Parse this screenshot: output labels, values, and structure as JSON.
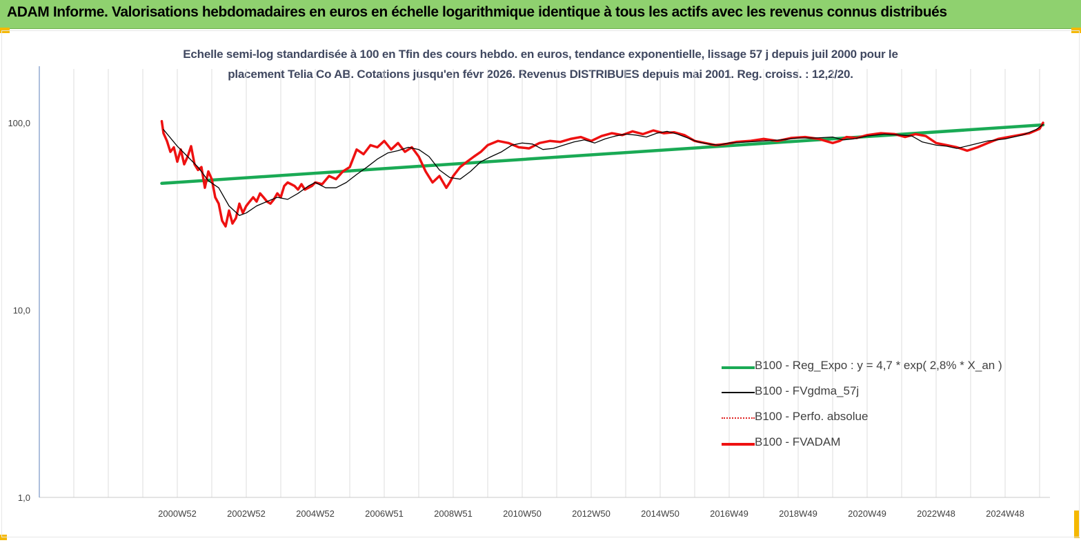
{
  "header": {
    "title": "ADAM Informe. Valorisations hebdomadaires en euros en échelle logarithmique identique à tous les actifs avec les revenus connus distribués"
  },
  "chart_data": {
    "type": "line",
    "subtitle_line1": "Echelle semi-log standardisée à 100 en Tfin des cours hebdo. en euros, tendance exponentielle, lissage 57 j depuis juil 2000 pour le",
    "subtitle_line2": "placement Telia Co AB. Cotations jusqu'en févr 2026. Revenus DISTRIBUES depuis mai 2001. Reg. croiss. : 12,2/20.",
    "y_scale": "log",
    "ylim": [
      1,
      180
    ],
    "y_tick_labels": [
      {
        "value": 1,
        "label": "1,0"
      },
      {
        "value": 10,
        "label": "10,0"
      },
      {
        "value": 100,
        "label": "100,0"
      }
    ],
    "x_tick_labels": [
      "2000W52",
      "2002W52",
      "2004W52",
      "2006W51",
      "2008W51",
      "2010W50",
      "2012W50",
      "2014W50",
      "2016W49",
      "2018W49",
      "2020W49",
      "2022W48",
      "2024W48"
    ],
    "x_tick_years": [
      2001.0,
      2003.0,
      2005.0,
      2007.0,
      2009.0,
      2011.0,
      2013.0,
      2015.0,
      2017.0,
      2019.0,
      2021.0,
      2023.0,
      2025.0
    ],
    "xlim": [
      1996.0,
      2026.3
    ],
    "grid": "vertical",
    "legend_position": "bottom-right",
    "series": [
      {
        "name": "B100 - Reg_Expo : y = 4,7 * exp( 2,8% *  X_an )",
        "color": "#1aaa55",
        "style": "solid-thick",
        "x": [
          2000.55,
          2026.1
        ],
        "y": [
          47.5,
          97.5
        ]
      },
      {
        "name": "B100 - FVgdma_57j",
        "color": "#000000",
        "style": "solid-thin",
        "x": [
          2000.6,
          2001.0,
          2001.3,
          2001.6,
          2001.9,
          2002.2,
          2002.5,
          2002.8,
          2003.0,
          2003.3,
          2003.6,
          2003.9,
          2004.2,
          2004.5,
          2004.8,
          2005.0,
          2005.3,
          2005.6,
          2005.9,
          2006.2,
          2006.5,
          2006.8,
          2007.1,
          2007.4,
          2007.7,
          2008.0,
          2008.3,
          2008.6,
          2008.9,
          2009.2,
          2009.5,
          2009.8,
          2010.1,
          2010.4,
          2010.7,
          2011.0,
          2011.3,
          2011.6,
          2011.9,
          2012.2,
          2012.5,
          2012.8,
          2013.1,
          2013.4,
          2013.7,
          2014.0,
          2014.3,
          2014.6,
          2014.9,
          2015.2,
          2015.5,
          2015.8,
          2016.1,
          2016.4,
          2016.7,
          2017.0,
          2017.5,
          2018.0,
          2018.5,
          2019.0,
          2019.5,
          2020.0,
          2020.3,
          2020.6,
          2021.0,
          2021.5,
          2022.0,
          2022.3,
          2022.6,
          2023.0,
          2023.3,
          2023.6,
          2024.0,
          2024.5,
          2025.0,
          2025.5,
          2025.9,
          2026.1
        ],
        "y": [
          92,
          75,
          66,
          58,
          49,
          45,
          36,
          32,
          33,
          36,
          38,
          40,
          39,
          42,
          46,
          48,
          45,
          45,
          48,
          53,
          58,
          64,
          69,
          71,
          74,
          72,
          66,
          56,
          51,
          50,
          55,
          62,
          66,
          70,
          76,
          78,
          77,
          72,
          73,
          76,
          79,
          81,
          78,
          82,
          85,
          87,
          86,
          84,
          88,
          90,
          87,
          83,
          79,
          77,
          76,
          78,
          79,
          80,
          81,
          83,
          83,
          84,
          81,
          82,
          85,
          87,
          86,
          85,
          79,
          76,
          75,
          73,
          76,
          80,
          82,
          86,
          92,
          98
        ]
      },
      {
        "name": "B100 - Perfo. absolue",
        "color": "#e02020",
        "style": "dotted"
      },
      {
        "name": "B100 - FVADAM",
        "color": "#ee1111",
        "style": "solid-thick",
        "x": [
          2000.55,
          2000.6,
          2000.7,
          2000.8,
          2000.9,
          2001.0,
          2001.1,
          2001.2,
          2001.3,
          2001.4,
          2001.5,
          2001.6,
          2001.7,
          2001.8,
          2001.9,
          2002.0,
          2002.1,
          2002.2,
          2002.3,
          2002.4,
          2002.5,
          2002.6,
          2002.7,
          2002.8,
          2002.9,
          2003.0,
          2003.1,
          2003.2,
          2003.3,
          2003.4,
          2003.5,
          2003.6,
          2003.7,
          2003.8,
          2003.9,
          2004.0,
          2004.1,
          2004.2,
          2004.3,
          2004.4,
          2004.5,
          2004.6,
          2004.7,
          2004.8,
          2004.9,
          2005.0,
          2005.2,
          2005.4,
          2005.6,
          2005.8,
          2006.0,
          2006.2,
          2006.4,
          2006.6,
          2006.8,
          2007.0,
          2007.2,
          2007.4,
          2007.6,
          2007.8,
          2008.0,
          2008.2,
          2008.4,
          2008.6,
          2008.8,
          2008.9,
          2009.0,
          2009.2,
          2009.4,
          2009.6,
          2009.8,
          2010.0,
          2010.3,
          2010.6,
          2010.9,
          2011.2,
          2011.5,
          2011.8,
          2012.1,
          2012.4,
          2012.7,
          2013.0,
          2013.3,
          2013.6,
          2013.9,
          2014.2,
          2014.5,
          2014.8,
          2015.1,
          2015.4,
          2015.7,
          2016.0,
          2016.3,
          2016.6,
          2016.9,
          2017.2,
          2017.6,
          2018.0,
          2018.4,
          2018.8,
          2019.2,
          2019.6,
          2020.0,
          2020.2,
          2020.4,
          2020.7,
          2021.0,
          2021.4,
          2021.8,
          2022.1,
          2022.4,
          2022.7,
          2023.0,
          2023.3,
          2023.6,
          2023.9,
          2024.2,
          2024.5,
          2024.8,
          2025.1,
          2025.4,
          2025.7,
          2026.0,
          2026.1
        ],
        "y": [
          102,
          88,
          80,
          70,
          74,
          62,
          72,
          60,
          66,
          75,
          60,
          56,
          58,
          45,
          55,
          50,
          40,
          37,
          30,
          28,
          34,
          29,
          31,
          37,
          33,
          36,
          38,
          40,
          38,
          42,
          40,
          38,
          37,
          39,
          42,
          40,
          46,
          48,
          47,
          46,
          44,
          47,
          44,
          45,
          46,
          48,
          47,
          52,
          50,
          55,
          58,
          72,
          68,
          76,
          74,
          80,
          72,
          78,
          70,
          74,
          66,
          55,
          48,
          52,
          45,
          48,
          52,
          58,
          62,
          66,
          70,
          76,
          80,
          78,
          74,
          73,
          78,
          80,
          79,
          82,
          84,
          80,
          85,
          88,
          86,
          90,
          87,
          91,
          88,
          89,
          86,
          80,
          78,
          76,
          77,
          79,
          80,
          82,
          80,
          83,
          84,
          82,
          78,
          80,
          84,
          83,
          86,
          88,
          87,
          84,
          87,
          85,
          78,
          76,
          74,
          71,
          74,
          78,
          82,
          84,
          86,
          88,
          93,
          100
        ]
      }
    ]
  }
}
